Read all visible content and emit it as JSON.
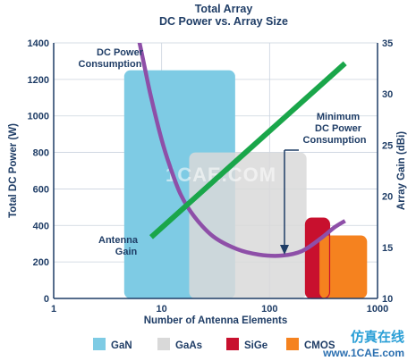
{
  "chart_data": {
    "type": "area",
    "title": "Total Array",
    "subtitle": "DC Power vs. Array Size",
    "xlabel": "Number of Antenna Elements",
    "ylabel": "Total DC Power (W)",
    "y2label": "Array Gain (dBi)",
    "x_scale": "log",
    "xlim": [
      1,
      1000
    ],
    "ylim": [
      0,
      1400
    ],
    "y2lim": [
      10,
      35
    ],
    "x_ticks": [
      "1",
      "10",
      "100",
      "1000"
    ],
    "y_ticks": [
      "0",
      "200",
      "400",
      "600",
      "800",
      "1000",
      "1200",
      "1400"
    ],
    "y2_ticks": [
      "10",
      "15",
      "20",
      "25",
      "30",
      "35"
    ],
    "regions": [
      {
        "name": "GaN",
        "x": [
          4.5,
          48
        ],
        "y": [
          0,
          1250
        ],
        "color": "#7ecbe4"
      },
      {
        "name": "GaAs",
        "x": [
          18,
          220
        ],
        "y": [
          0,
          800
        ],
        "color": "#d9d9d9"
      },
      {
        "name": "SiGe",
        "x": [
          215,
          360
        ],
        "y": [
          0,
          440
        ],
        "color": "#c8102e"
      },
      {
        "name": "CMOS",
        "x": [
          290,
          800
        ],
        "y": [
          0,
          345
        ],
        "color": "#f5821f"
      }
    ],
    "series": [
      {
        "name": "DC Power Consumption",
        "axis": "left",
        "color": "#8e4fa8",
        "x": [
          6,
          7,
          8,
          10,
          12,
          15,
          20,
          30,
          50,
          80,
          130,
          200,
          300,
          400,
          500
        ],
        "y": [
          1450,
          1260,
          1100,
          870,
          720,
          570,
          450,
          340,
          270,
          240,
          235,
          260,
          330,
          390,
          425
        ]
      },
      {
        "name": "Antenna Gain",
        "axis": "right",
        "color": "#1aa64a",
        "x": [
          8,
          500
        ],
        "y": [
          16,
          33
        ]
      }
    ],
    "annotations": [
      {
        "lines": [
          "DC Power",
          "Consumption"
        ]
      },
      {
        "lines": [
          "Minimum",
          "DC Power",
          "Consumption"
        ]
      },
      {
        "lines": [
          "Antenna",
          "Gain"
        ]
      }
    ],
    "legend": {
      "position": "bottom",
      "items": [
        {
          "label": "GaN",
          "color": "#7ecbe4"
        },
        {
          "label": "GaAs",
          "color": "#d9d9d9"
        },
        {
          "label": "SiGe",
          "color": "#c8102e"
        },
        {
          "label": "CMOS",
          "color": "#f5821f"
        }
      ]
    },
    "grid": true
  },
  "watermark": {
    "center": "1CAE.COM",
    "brand_cn": "仿真在线",
    "brand_url": "www.1CAE.com"
  }
}
